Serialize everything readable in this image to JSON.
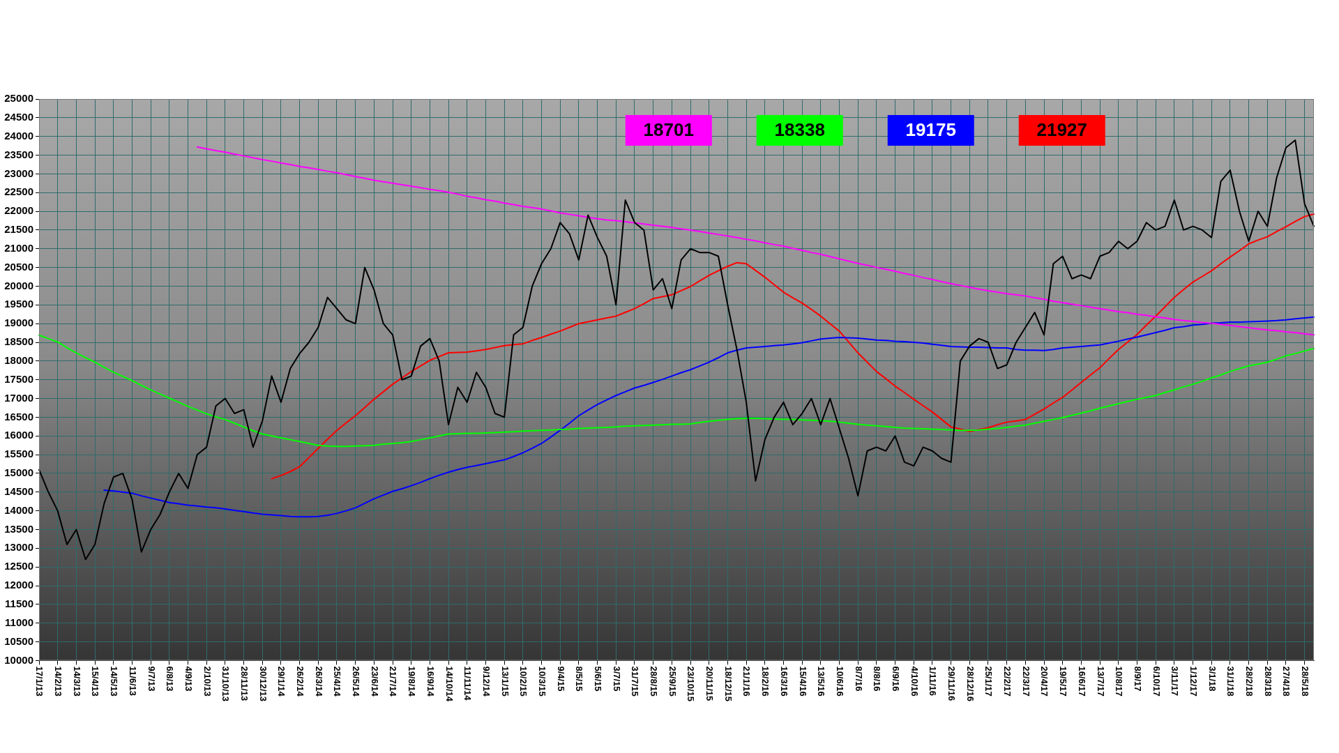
{
  "chart_data": {
    "type": "line",
    "categories": [
      "17/1/13",
      null,
      "14/2/13",
      null,
      "14/3/13",
      null,
      "15/4/13",
      null,
      "14/5/13",
      null,
      "11/6/13",
      null,
      "9/7/13",
      null,
      "6/8/13",
      null,
      "4/9/13",
      null,
      "2/10/13",
      null,
      "31/10/13",
      null,
      "28/11/13",
      null,
      "30/12/13",
      null,
      "29/1/14",
      null,
      "26/2/14",
      null,
      "26/3/14",
      null,
      "25/4/14",
      null,
      "26/5/14",
      null,
      "23/6/14",
      null,
      "21/7/14",
      null,
      "19/8/14",
      null,
      "16/9/14",
      null,
      "14/10/14",
      null,
      "11/11/14",
      null,
      "9/12/14",
      null,
      "13/1/15",
      null,
      "10/2/15",
      null,
      "10/3/15",
      null,
      "9/4/15",
      null,
      "8/5/15",
      null,
      "5/6/15",
      null,
      "3/7/15",
      null,
      "31/7/15",
      null,
      "28/8/15",
      null,
      "25/9/15",
      null,
      "23/10/15",
      null,
      "20/11/15",
      null,
      "18/12/15",
      null,
      "21/1/16",
      null,
      "18/2/16",
      null,
      "16/3/16",
      null,
      "15/4/16",
      null,
      "13/5/16",
      null,
      "10/6/16",
      null,
      "8/7/16",
      null,
      "8/8/16",
      null,
      "6/9/16",
      null,
      "4/10/16",
      null,
      "1/11/16",
      null,
      "29/11/16",
      null,
      "28/12/16",
      null,
      "25/1/17",
      null,
      "22/2/17",
      null,
      "22/3/17",
      null,
      "20/4/17",
      null,
      "19/5/17",
      null,
      "16/6/17",
      null,
      "13/7/17",
      null,
      "10/8/17",
      null,
      "8/9/17",
      null,
      "6/10/17",
      null,
      "3/11/17",
      null,
      "1/12/17",
      null,
      "3/1/18",
      null,
      "31/1/18",
      null,
      "28/2/18",
      null,
      "28/3/18",
      null,
      "27/4/18",
      null,
      "28/5/18",
      null
    ],
    "series": [
      {
        "color": "#000000",
        "values": [
          15100,
          14500,
          14000,
          13100,
          13500,
          12700,
          13100,
          14200,
          14900,
          15000,
          14300,
          12900,
          13500,
          13900,
          14500,
          15000,
          14600,
          15500,
          15700,
          16800,
          17000,
          16600,
          16700,
          15700,
          16400,
          17600,
          16900,
          17800,
          18200,
          18500,
          18900,
          19700,
          19400,
          19100,
          19000,
          20500,
          19900,
          19000,
          18700,
          17500,
          17600,
          18400,
          18600,
          18000,
          16300,
          17300,
          16900,
          17700,
          17300,
          16600,
          16500,
          18700,
          18900,
          20000,
          20600,
          21000,
          21700,
          21400,
          20700,
          21900,
          21300,
          20800,
          19500,
          22300,
          21700,
          21500,
          19900,
          20200,
          19400,
          20700,
          21000,
          20900,
          20900,
          20800,
          19500,
          18300,
          16900,
          14800,
          15900,
          16500,
          16900,
          16300,
          16600,
          17000,
          16300,
          17000,
          16200,
          15400,
          14400,
          15600,
          15700,
          15600,
          16000,
          15300,
          15200,
          15700,
          15600,
          15400,
          15300,
          18000,
          18400,
          18600,
          18500,
          17800,
          17900,
          18500,
          18900,
          19300,
          18700,
          20600,
          20800,
          20200,
          20300,
          20200,
          20800,
          20900,
          21200,
          21000,
          21200,
          21700,
          21500,
          21600,
          22300,
          21500,
          21600,
          21500,
          21300,
          22800,
          23100,
          22000,
          21200,
          22000,
          21600,
          22900,
          23700,
          23900,
          22200,
          21600
        ]
      },
      {
        "name": "18701",
        "color": "#ff00ff",
        "values": [
          null,
          null,
          null,
          null,
          null,
          null,
          null,
          null,
          null,
          null,
          null,
          null,
          null,
          null,
          null,
          null,
          null,
          23720,
          23670,
          23620,
          23580,
          23530,
          23480,
          23430,
          23380,
          23340,
          23290,
          23250,
          23200,
          23160,
          23120,
          23070,
          23030,
          22980,
          22930,
          22880,
          22830,
          22790,
          22750,
          22710,
          22670,
          22630,
          22590,
          22550,
          22510,
          22460,
          22400,
          22360,
          22310,
          22270,
          22220,
          22180,
          22130,
          22100,
          22060,
          22010,
          21960,
          21920,
          21880,
          21840,
          21800,
          21770,
          21750,
          21720,
          21690,
          21660,
          21630,
          21600,
          21570,
          21530,
          21500,
          21460,
          21420,
          21380,
          21340,
          21300,
          21250,
          21210,
          21160,
          21110,
          21070,
          21010,
          20960,
          20900,
          20850,
          20790,
          20730,
          20670,
          20610,
          20560,
          20500,
          20450,
          20400,
          20340,
          20290,
          20230,
          20180,
          20120,
          20070,
          20020,
          19970,
          19920,
          19880,
          19840,
          19800,
          19770,
          19740,
          19690,
          19650,
          19600,
          19560,
          19520,
          19480,
          19440,
          19400,
          19360,
          19320,
          19290,
          19250,
          19220,
          19180,
          19150,
          19110,
          19080,
          19060,
          19030,
          19010,
          18980,
          18950,
          18920,
          18890,
          18860,
          18830,
          18810,
          18780,
          18760,
          18730,
          18701
        ]
      },
      {
        "name": "18338",
        "color": "#00ff00",
        "values": [
          18690,
          18600,
          18510,
          18360,
          18220,
          18090,
          17970,
          17830,
          17700,
          17590,
          17480,
          17350,
          17230,
          17120,
          17010,
          16900,
          16790,
          16690,
          16590,
          16510,
          16440,
          16340,
          16240,
          16140,
          16050,
          16000,
          15950,
          15900,
          15850,
          15800,
          15750,
          15730,
          15720,
          15720,
          15730,
          15740,
          15750,
          15780,
          15800,
          15820,
          15850,
          15900,
          15950,
          16000,
          16050,
          16060,
          16070,
          16070,
          16080,
          16090,
          16100,
          16110,
          16130,
          16140,
          16150,
          16160,
          16170,
          16180,
          16200,
          16210,
          16220,
          16230,
          16240,
          16260,
          16270,
          16280,
          16290,
          16300,
          16310,
          16310,
          16320,
          16360,
          16390,
          16420,
          16440,
          16460,
          16470,
          16470,
          16460,
          16450,
          16440,
          16440,
          16430,
          16420,
          16410,
          16390,
          16370,
          16340,
          16310,
          16290,
          16270,
          16250,
          16230,
          16210,
          16200,
          16190,
          16180,
          16170,
          16160,
          16150,
          16150,
          16160,
          16180,
          16200,
          16230,
          16260,
          16290,
          16340,
          16390,
          16440,
          16490,
          16550,
          16610,
          16670,
          16740,
          16800,
          16860,
          16920,
          16980,
          17030,
          17080,
          17160,
          17230,
          17310,
          17380,
          17460,
          17550,
          17630,
          17720,
          17800,
          17870,
          17920,
          17970,
          18050,
          18140,
          18200,
          18270,
          18338
        ]
      },
      {
        "name": "19175",
        "color": "#0000ff",
        "values": [
          null,
          null,
          null,
          null,
          null,
          null,
          null,
          14550,
          14530,
          14500,
          14470,
          14400,
          14340,
          14280,
          14220,
          14190,
          14150,
          14130,
          14100,
          14080,
          14050,
          14010,
          13980,
          13940,
          13910,
          13890,
          13870,
          13850,
          13840,
          13840,
          13850,
          13880,
          13930,
          14000,
          14080,
          14200,
          14320,
          14420,
          14520,
          14590,
          14670,
          14760,
          14860,
          14950,
          15030,
          15100,
          15160,
          15210,
          15260,
          15310,
          15360,
          15450,
          15550,
          15670,
          15800,
          15970,
          16150,
          16340,
          16540,
          16690,
          16840,
          16960,
          17080,
          17180,
          17280,
          17350,
          17430,
          17510,
          17600,
          17690,
          17770,
          17870,
          17970,
          18090,
          18220,
          18290,
          18350,
          18370,
          18390,
          18410,
          18430,
          18460,
          18490,
          18540,
          18590,
          18610,
          18630,
          18620,
          18610,
          18590,
          18560,
          18550,
          18530,
          18520,
          18500,
          18480,
          18450,
          18420,
          18390,
          18380,
          18370,
          18370,
          18360,
          18350,
          18350,
          18310,
          18290,
          18290,
          18280,
          18310,
          18350,
          18370,
          18390,
          18410,
          18430,
          18480,
          18530,
          18590,
          18640,
          18700,
          18760,
          18820,
          18890,
          18920,
          18960,
          18980,
          19010,
          19020,
          19040,
          19040,
          19050,
          19060,
          19070,
          19080,
          19100,
          19130,
          19150,
          19175
        ]
      },
      {
        "name": "21927",
        "color": "#ff0000",
        "values": [
          null,
          null,
          null,
          null,
          null,
          null,
          null,
          null,
          null,
          null,
          null,
          null,
          null,
          null,
          null,
          null,
          null,
          null,
          null,
          null,
          null,
          null,
          null,
          null,
          null,
          14860,
          14940,
          15050,
          15180,
          15420,
          15670,
          15910,
          16150,
          16350,
          16540,
          16760,
          16980,
          17180,
          17380,
          17550,
          17720,
          17870,
          18020,
          18120,
          18220,
          18230,
          18240,
          18270,
          18310,
          18360,
          18410,
          18440,
          18460,
          18550,
          18630,
          18720,
          18800,
          18900,
          19000,
          19050,
          19100,
          19150,
          19200,
          19300,
          19400,
          19530,
          19670,
          19720,
          19770,
          19880,
          19990,
          20140,
          20290,
          20410,
          20530,
          20630,
          20600,
          20420,
          20240,
          20040,
          19840,
          19690,
          19550,
          19380,
          19200,
          19000,
          18800,
          18510,
          18220,
          17970,
          17720,
          17530,
          17330,
          17160,
          16980,
          16810,
          16640,
          16440,
          16240,
          16180,
          16120,
          16170,
          16220,
          16300,
          16370,
          16400,
          16440,
          16580,
          16720,
          16880,
          17030,
          17230,
          17430,
          17630,
          17820,
          18070,
          18310,
          18510,
          18710,
          18960,
          19200,
          19450,
          19700,
          19910,
          20110,
          20260,
          20410,
          20600,
          20780,
          20950,
          21130,
          21230,
          21320,
          21460,
          21590,
          21730,
          21860,
          21927
        ]
      }
    ],
    "ylim": [
      10000,
      25000
    ],
    "yticks": [
      10000,
      10500,
      11000,
      11500,
      12000,
      12500,
      13000,
      13500,
      14000,
      14500,
      15000,
      15500,
      16000,
      16500,
      17000,
      17500,
      18000,
      18500,
      19000,
      19500,
      20000,
      20500,
      21000,
      21500,
      22000,
      22500,
      23000,
      23500,
      24000,
      24500,
      25000
    ],
    "grid": true,
    "legend": "top right",
    "marker": "none"
  }
}
